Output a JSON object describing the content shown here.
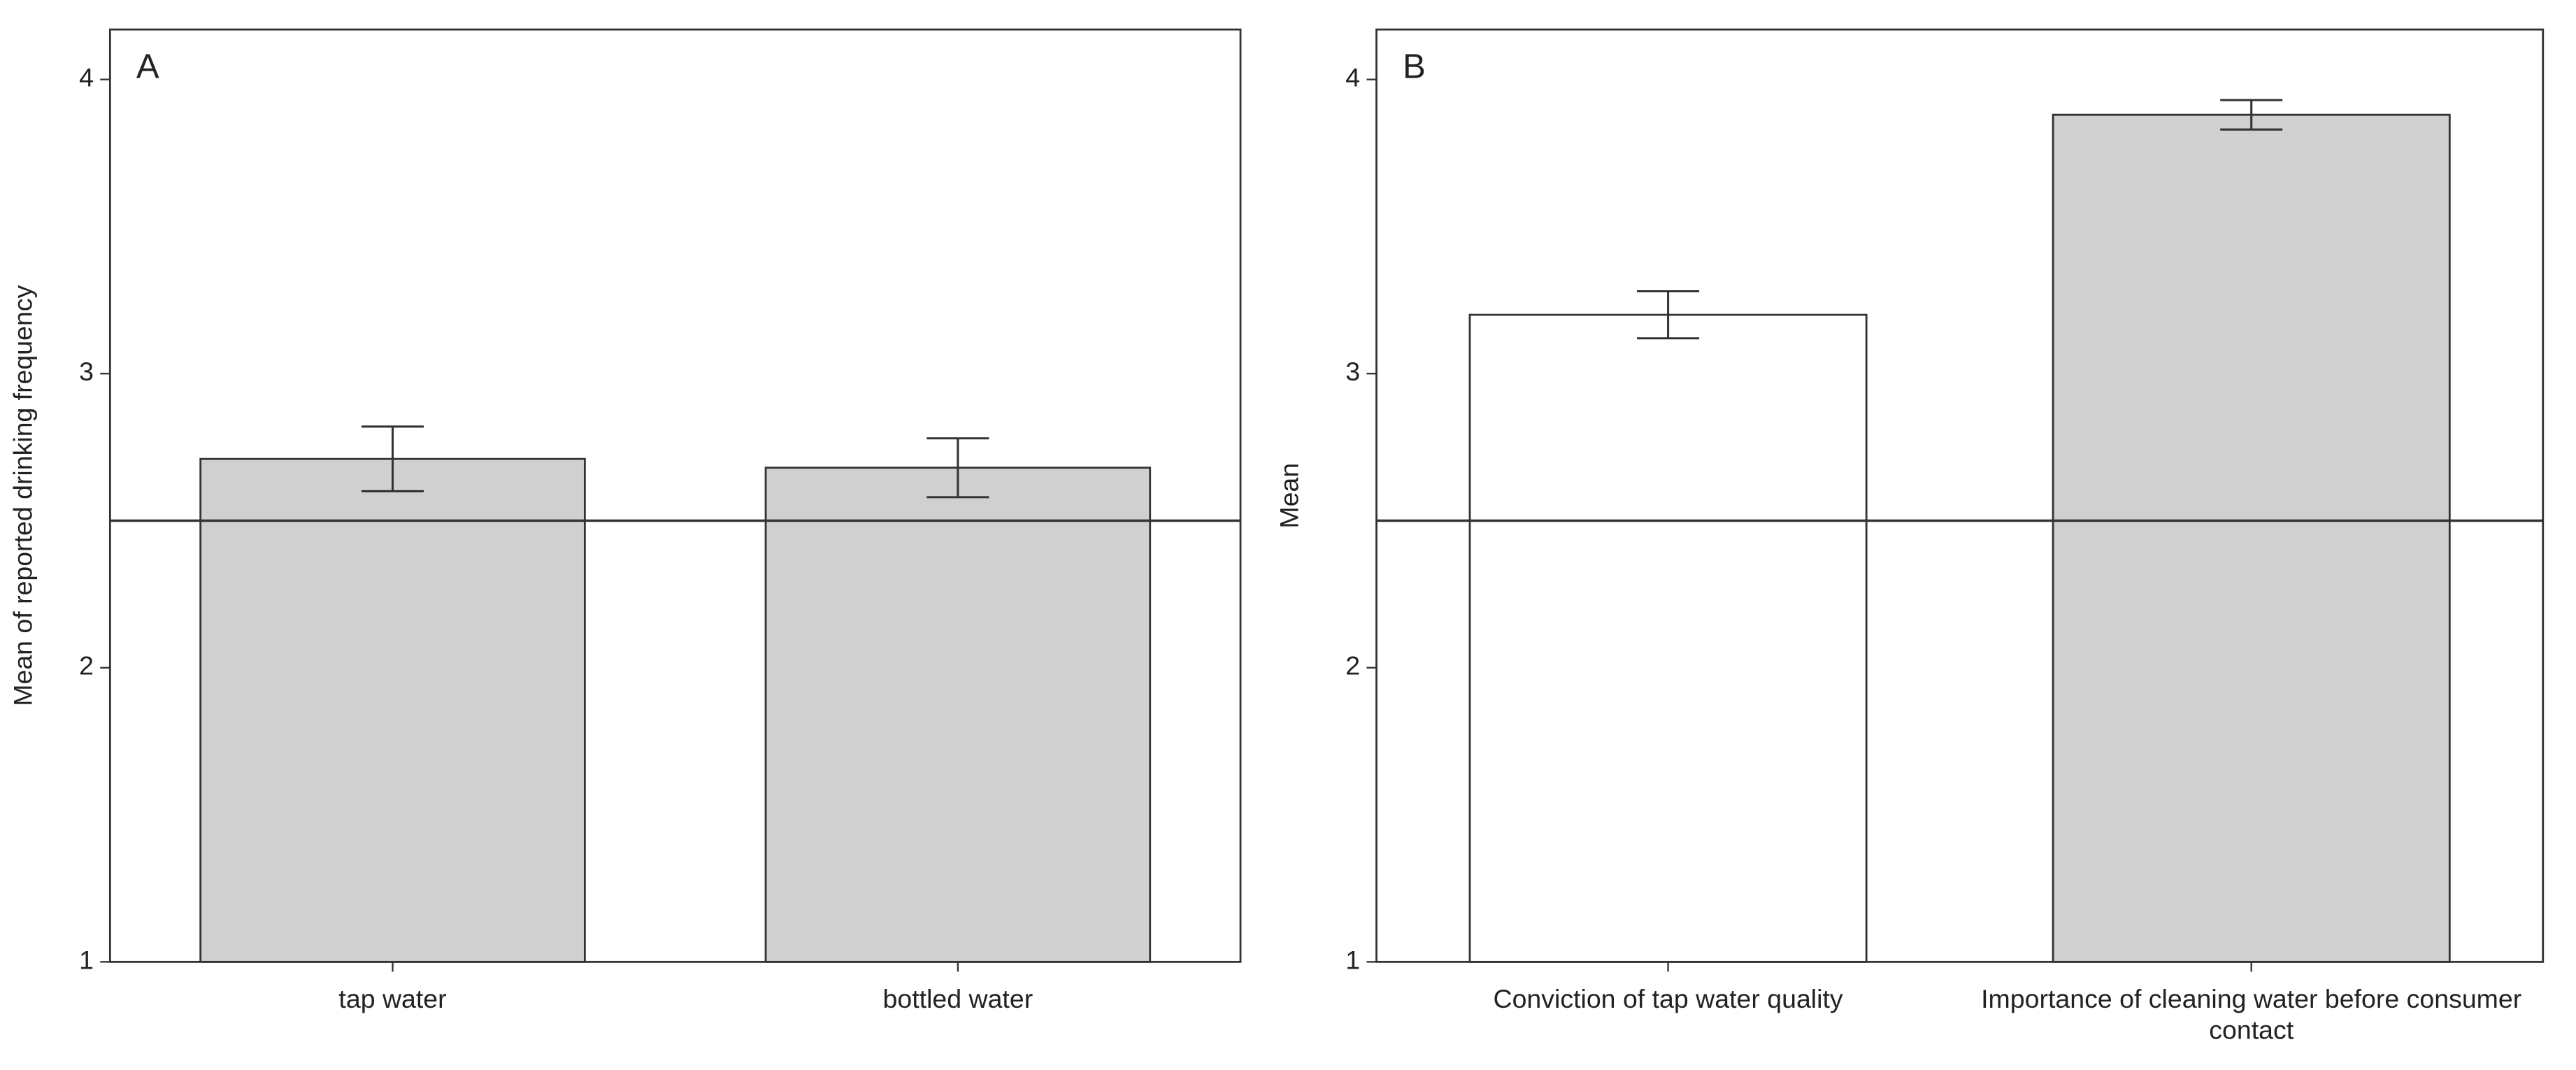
{
  "chart_data": [
    {
      "type": "bar",
      "panel_label": "A",
      "ylabel": "Mean of reported drinking frequency",
      "categories": [
        "tap water",
        "bottled water"
      ],
      "values": [
        2.71,
        2.68
      ],
      "errors": [
        0.11,
        0.1
      ],
      "colors": [
        "#d0d0d0",
        "#d0d0d0"
      ],
      "reference_line": 2.5,
      "ylim": [
        1,
        4.17
      ],
      "yticks": [
        1,
        2,
        3,
        4
      ]
    },
    {
      "type": "bar",
      "panel_label": "B",
      "ylabel": "Mean",
      "categories": [
        "Conviction of tap water quality",
        "Importance of cleaning water before consumer contact"
      ],
      "values": [
        3.2,
        3.88
      ],
      "errors": [
        0.08,
        0.05
      ],
      "colors": [
        "#ffffff",
        "#d0d0d0"
      ],
      "reference_line": 2.5,
      "ylim": [
        1,
        4.17
      ],
      "yticks": [
        1,
        2,
        3,
        4
      ]
    }
  ]
}
